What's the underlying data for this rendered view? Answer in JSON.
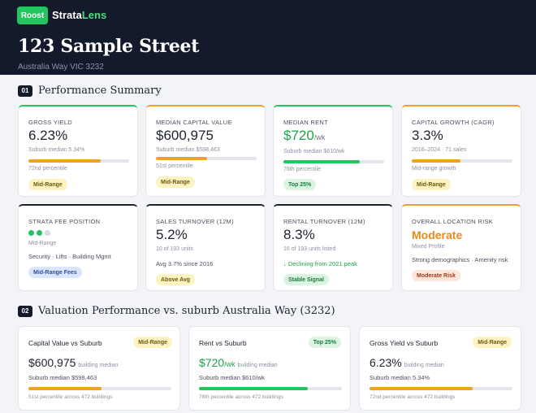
{
  "header": {
    "logo_label": "Roost",
    "brand_prefix": "Strata",
    "brand_suffix": "Lens",
    "address": "123 Sample Street",
    "locality": "Australia Way VIC 3232"
  },
  "sections": [
    {
      "number": "01",
      "title": "Performance Summary"
    },
    {
      "number": "02",
      "title": "Valuation Performance vs. suburb Australia Way (3232)"
    }
  ],
  "summary_cards": {
    "gross_yield": {
      "label": "Gross Yield",
      "value": "6.23%",
      "note": "Suburb median 5.34%",
      "percentile": "72nd percentile",
      "bar": 0.72,
      "badge": "Mid-Range"
    },
    "capital_value": {
      "label": "Median Capital Value",
      "value": "$600,975",
      "note": "Suburb median $598,463",
      "percentile": "51st percentile",
      "bar": 0.51,
      "badge": "Mid-Range"
    },
    "median_rent": {
      "label": "Median Rent",
      "value": "$720",
      "unit": "/wk",
      "note": "Suburb median $610/wk",
      "percentile": "76th percentile",
      "bar": 0.76,
      "badge": "Top 25%"
    },
    "capital_growth": {
      "label": "Capital Growth (CAGR)",
      "value": "3.3%",
      "note": "2016–2024 · 71 sales",
      "percentile": "Mid-range growth",
      "bar": 0.48,
      "badge": "Mid-Range"
    },
    "strata_fee": {
      "label": "Strata Fee Position",
      "dots_on": 2,
      "dots_total": 3,
      "note": "Mid-Range",
      "detail": "Security · Lifts · Building Mgmt",
      "badge": "Mid-Range Fees"
    },
    "sales_turnover": {
      "label": "Sales Turnover (12M)",
      "value": "5.2%",
      "note": "10 of 193 units",
      "detail": "Avg 3.7% since 2016",
      "badge": "Above Avg"
    },
    "rental_turnover": {
      "label": "Rental Turnover (12M)",
      "value": "8.3%",
      "note": "16 of 193 units listed",
      "detail": "↓ Declining from 2021 peak",
      "badge": "Stable Signal"
    },
    "location_risk": {
      "label": "Overall Location Risk",
      "value": "Moderate",
      "note": "Mixed Profile",
      "detail": "Strong demographics · Amenity risk",
      "badge": "Moderate Risk"
    }
  },
  "valuation_cards": [
    {
      "title": "Capital Value vs Suburb",
      "badge": "Mid-Range",
      "value": "$600,975",
      "unit": "",
      "tag": "building median",
      "sub": "Suburb median $598,463",
      "bar": 0.51,
      "note": "51st percentile across 472 buildings"
    },
    {
      "title": "Rent vs Suburb",
      "badge": "Top 25%",
      "value": "$720",
      "unit": "/wk",
      "tag": "building median",
      "sub": "Suburb median $610/wk",
      "bar": 0.76,
      "note": "76th percentile across 472 buildings"
    },
    {
      "title": "Gross Yield vs Suburb",
      "badge": "Mid-Range",
      "value": "6.23%",
      "unit": "",
      "tag": "building median",
      "sub": "Suburb median 5.34%",
      "bar": 0.72,
      "note": "72nd percentile across 472 buildings"
    }
  ],
  "colors": {
    "accent_green": "#22c55e",
    "accent_orange": "#eea21e",
    "navy": "#131a2b"
  }
}
